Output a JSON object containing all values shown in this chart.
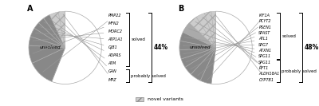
{
  "chart_A": {
    "title": "A",
    "slices": [
      {
        "label": "unsolved",
        "value": 56,
        "color": "#ffffff",
        "hatch": null
      },
      {
        "label": "PMP22",
        "value": 12,
        "color": "#888888",
        "hatch": null
      },
      {
        "label": "MFN2",
        "value": 8,
        "color": "#888888",
        "hatch": null
      },
      {
        "label": "MORC2",
        "value": 4,
        "color": "#888888",
        "hatch": null
      },
      {
        "label": "ATP1A1",
        "value": 4,
        "color": "#888888",
        "hatch": null
      },
      {
        "label": "GJB1",
        "value": 3,
        "color": "#888888",
        "hatch": null
      },
      {
        "label": "ADPRS",
        "value": 3,
        "color": "#888888",
        "hatch": null
      },
      {
        "label": "ATM",
        "value": 3,
        "color": "#888888",
        "hatch": null
      },
      {
        "label": "GAN",
        "value": 4,
        "color": "#cccccc",
        "hatch": "///"
      },
      {
        "label": "MPZ",
        "value": 3,
        "color": "#cccccc",
        "hatch": "///"
      }
    ],
    "n_solved": 7,
    "n_probably": 2,
    "percent": "44%",
    "solved_group": "solved",
    "probably_group": "probably solved"
  },
  "chart_B": {
    "title": "B",
    "slices": [
      {
        "label": "unsolved",
        "value": 52,
        "color": "#ffffff",
        "hatch": null
      },
      {
        "label": "KIF1A",
        "value": 5,
        "color": "#888888",
        "hatch": null
      },
      {
        "label": "PCYT2",
        "value": 5,
        "color": "#888888",
        "hatch": null
      },
      {
        "label": "PSEN1",
        "value": 4,
        "color": "#888888",
        "hatch": null
      },
      {
        "label": "SPAST",
        "value": 4,
        "color": "#888888",
        "hatch": null
      },
      {
        "label": "ATL1",
        "value": 4,
        "color": "#888888",
        "hatch": null
      },
      {
        "label": "SPG7",
        "value": 4,
        "color": "#888888",
        "hatch": null
      },
      {
        "label": "ATXN1",
        "value": 4,
        "color": "#888888",
        "hatch": null
      },
      {
        "label": "SPG11_s",
        "value": 5,
        "color": "#aaaaaa",
        "hatch": null
      },
      {
        "label": "SPG11",
        "value": 4,
        "color": "#cccccc",
        "hatch": "///"
      },
      {
        "label": "RFT1",
        "value": 4,
        "color": "#cccccc",
        "hatch": "///"
      },
      {
        "label": "ALDH18A1",
        "value": 3,
        "color": "#cccccc",
        "hatch": "///"
      },
      {
        "label": "CYP7B1",
        "value": 2,
        "color": "#cccccc",
        "hatch": "///"
      }
    ],
    "n_solved": 8,
    "n_probably": 4,
    "percent": "48%",
    "solved_group": "solved",
    "probably_group": "probably solved"
  },
  "legend_label": "novel variants",
  "legend_hatch": "///",
  "legend_color": "#cccccc",
  "background_color": "#ffffff"
}
